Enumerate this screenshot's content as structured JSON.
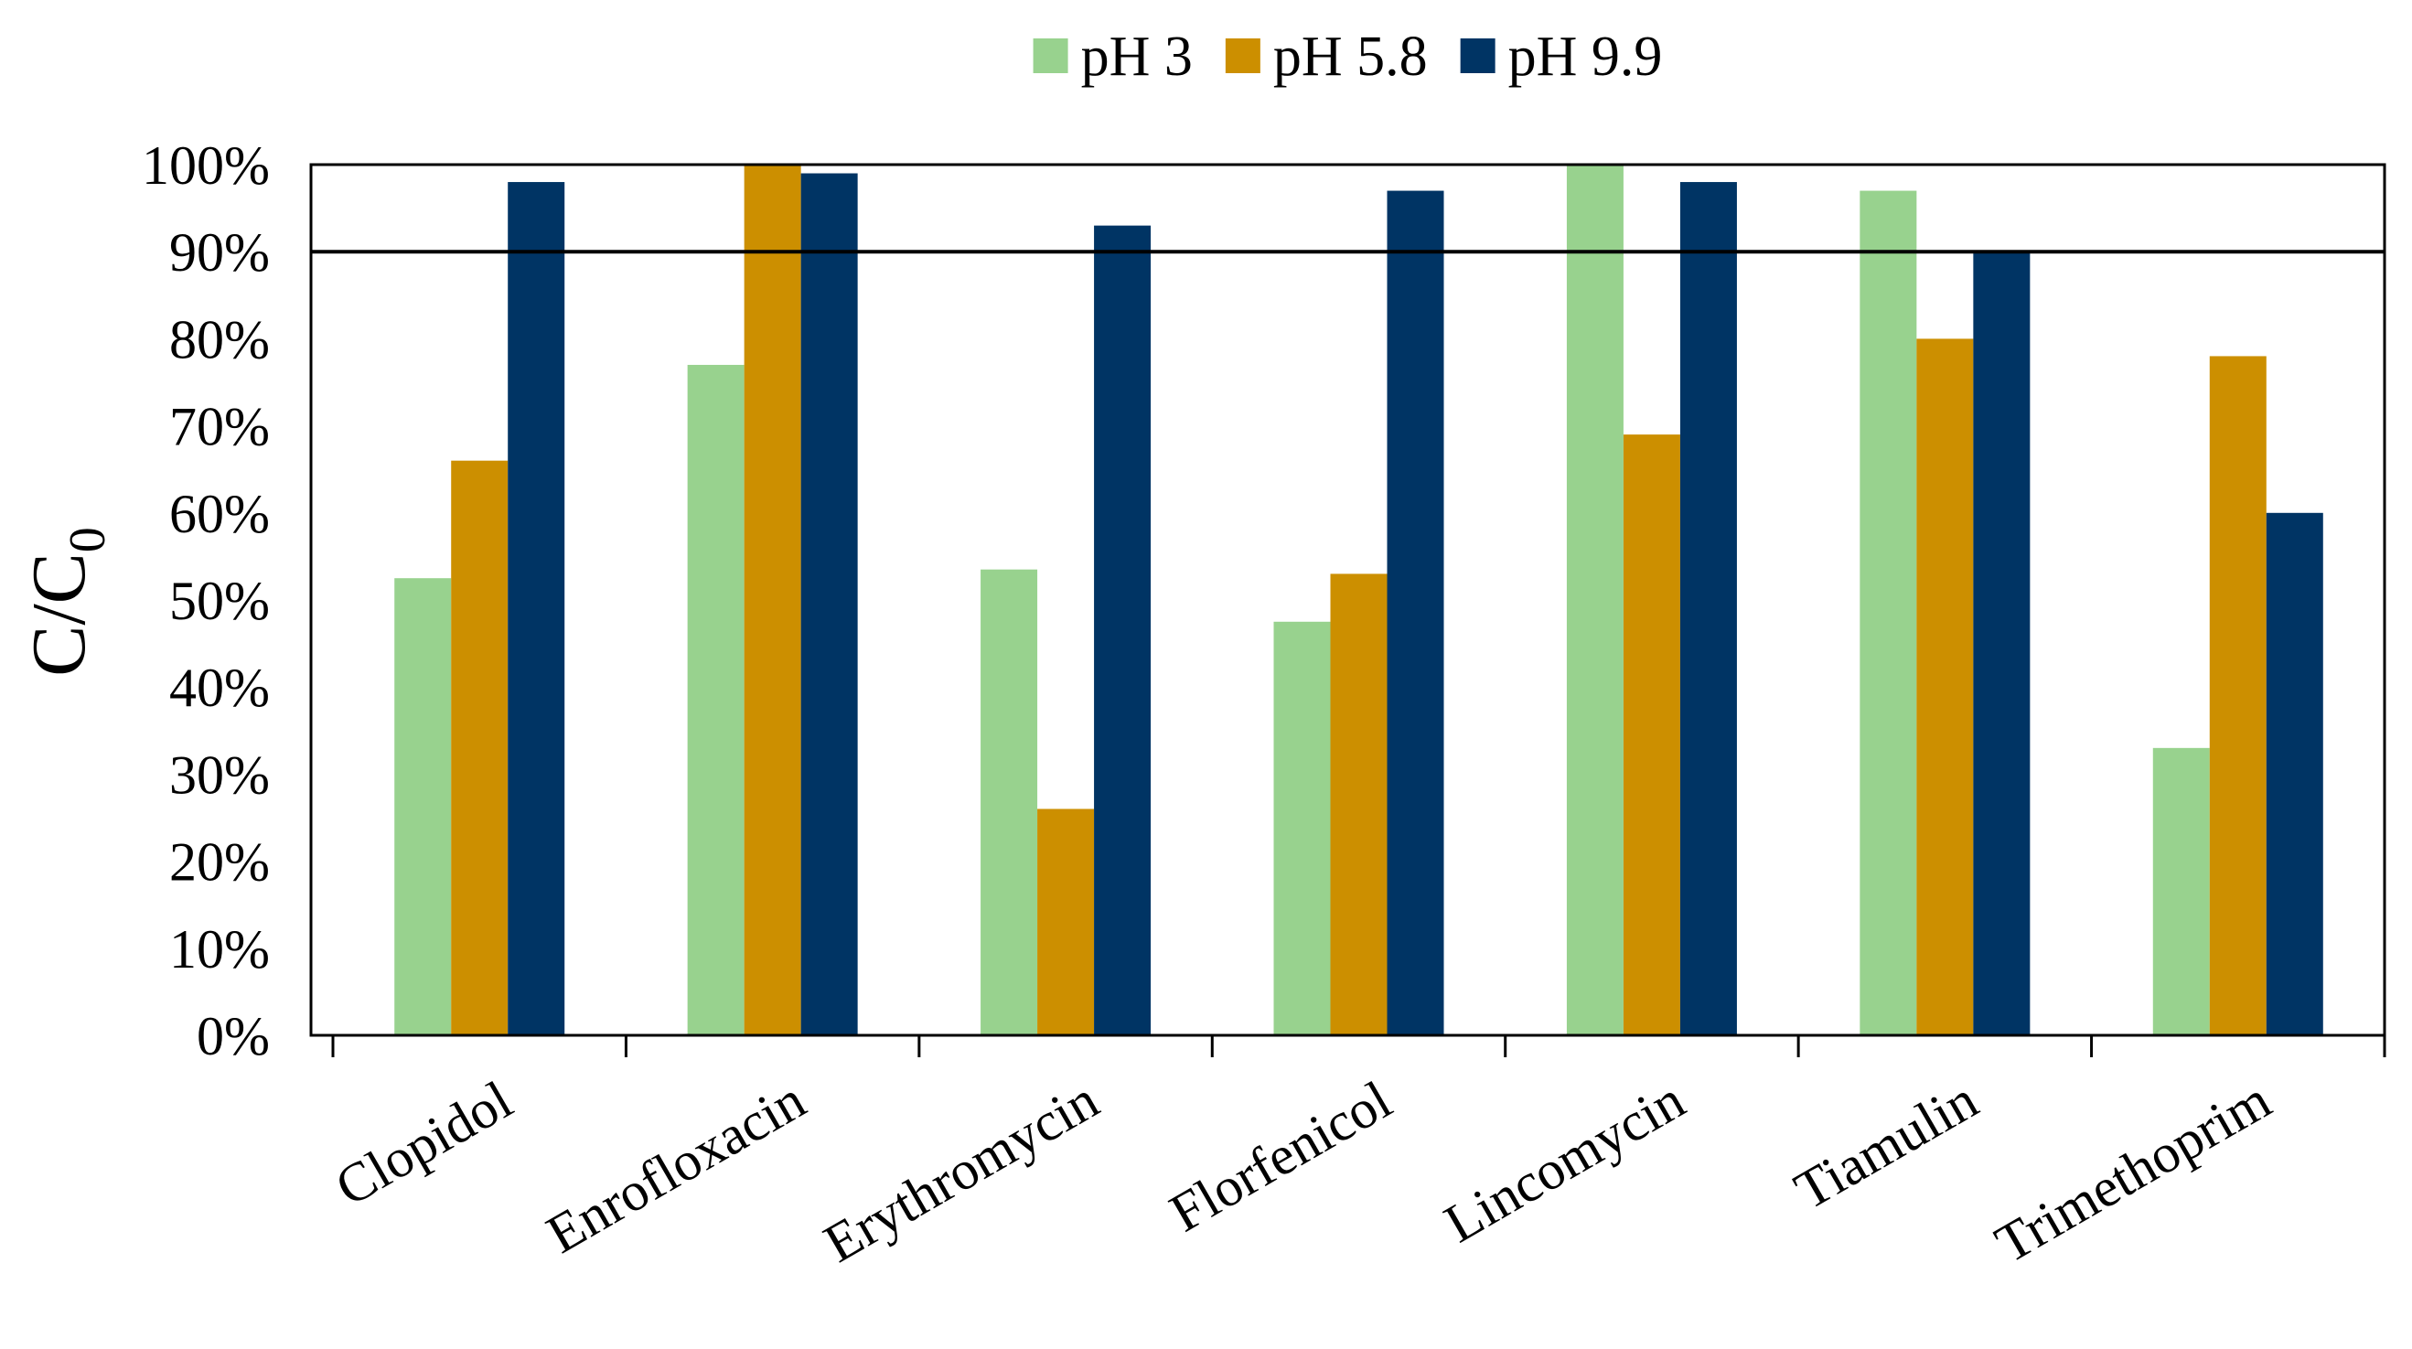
{
  "chart_data": {
    "type": "bar",
    "title": "",
    "xlabel": "",
    "ylabel": "C/C",
    "ylabel_subscript": "0",
    "ylim": [
      0,
      100
    ],
    "yticks": [
      "0%",
      "10%",
      "20%",
      "30%",
      "40%",
      "50%",
      "60%",
      "70%",
      "80%",
      "90%",
      "100%"
    ],
    "ytick_values": [
      0,
      10,
      20,
      30,
      40,
      50,
      60,
      70,
      80,
      90,
      100
    ],
    "reference_line": 90,
    "legend_position": "top-center",
    "categories": [
      "Clopidol",
      "Enrofloxacin",
      "Erythromycin",
      "Florfenicol",
      "Lincomycin",
      "Tiamulin",
      "Trimethoprim"
    ],
    "series": [
      {
        "name": "pH 3",
        "color": "#98d28e",
        "values": [
          52.5,
          77,
          53.5,
          47.5,
          100,
          97,
          33
        ]
      },
      {
        "name": "pH 5.8",
        "color": "#cc8f00",
        "values": [
          66,
          100,
          26,
          53,
          69,
          80,
          78
        ]
      },
      {
        "name": "pH 9.9",
        "color": "#003464",
        "values": [
          98,
          99,
          93,
          97,
          98,
          90,
          60
        ]
      }
    ]
  }
}
